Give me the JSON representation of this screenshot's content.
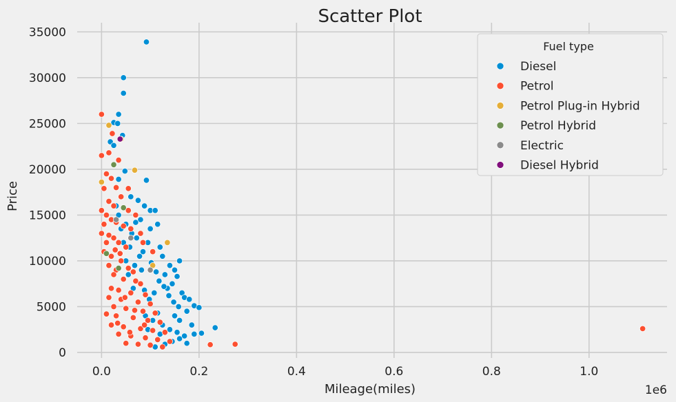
{
  "chart_data": {
    "type": "scatter",
    "title": "Scatter Plot",
    "xlabel": "Mileage(miles)",
    "ylabel": "Price",
    "x_offset_text": "1e6",
    "xlim": [
      -50000,
      1160000
    ],
    "ylim": [
      -600,
      36000
    ],
    "x_ticks": [
      0,
      200000,
      400000,
      600000,
      800000,
      1000000
    ],
    "x_tick_labels": [
      "0.0",
      "0.2",
      "0.4",
      "0.6",
      "0.8",
      "1.0"
    ],
    "y_ticks": [
      0,
      5000,
      10000,
      15000,
      20000,
      25000,
      30000,
      35000
    ],
    "y_tick_labels": [
      "0",
      "5000",
      "10000",
      "15000",
      "20000",
      "25000",
      "30000",
      "35000"
    ],
    "grid": true,
    "legend": {
      "title": "Fuel type",
      "placement": "top-right"
    },
    "series": [
      {
        "name": "Diesel",
        "color": "#008fd5",
        "points": [
          [
            92000,
            33900
          ],
          [
            45000,
            30000
          ],
          [
            45000,
            28300
          ],
          [
            35000,
            26000
          ],
          [
            25000,
            25100
          ],
          [
            33000,
            25000
          ],
          [
            43000,
            23700
          ],
          [
            18000,
            23000
          ],
          [
            25000,
            22600
          ],
          [
            48000,
            19800
          ],
          [
            92000,
            18800
          ],
          [
            35000,
            18900
          ],
          [
            60000,
            17000
          ],
          [
            75000,
            16600
          ],
          [
            88000,
            16000
          ],
          [
            100000,
            15500
          ],
          [
            110000,
            15500
          ],
          [
            115000,
            14000
          ],
          [
            80000,
            14500
          ],
          [
            70000,
            14200
          ],
          [
            100000,
            13500
          ],
          [
            95000,
            12000
          ],
          [
            120000,
            11500
          ],
          [
            85000,
            11000
          ],
          [
            125000,
            10500
          ],
          [
            160000,
            10000
          ],
          [
            140000,
            9500
          ],
          [
            150000,
            9000
          ],
          [
            130000,
            8500
          ],
          [
            155000,
            8300
          ],
          [
            145000,
            7500
          ],
          [
            135000,
            7000
          ],
          [
            165000,
            6500
          ],
          [
            170000,
            6000
          ],
          [
            180000,
            5800
          ],
          [
            190000,
            5100
          ],
          [
            200000,
            4900
          ],
          [
            175000,
            4500
          ],
          [
            150000,
            4000
          ],
          [
            160000,
            3500
          ],
          [
            185000,
            3000
          ],
          [
            190000,
            2000
          ],
          [
            233000,
            2700
          ],
          [
            205000,
            2100
          ],
          [
            170000,
            1800
          ],
          [
            160000,
            1500
          ],
          [
            175000,
            1000
          ],
          [
            145000,
            1200
          ],
          [
            130000,
            900
          ],
          [
            110000,
            600
          ],
          [
            120000,
            2000
          ],
          [
            95000,
            2500
          ],
          [
            90000,
            4000
          ],
          [
            75000,
            5500
          ],
          [
            65000,
            7000
          ],
          [
            55000,
            8500
          ],
          [
            50000,
            10000
          ],
          [
            45000,
            12000
          ],
          [
            40000,
            13500
          ],
          [
            35000,
            15000
          ],
          [
            30000,
            16000
          ],
          [
            28000,
            14500
          ],
          [
            50000,
            14000
          ],
          [
            62000,
            13000
          ],
          [
            72000,
            12500
          ],
          [
            78000,
            10500
          ],
          [
            82000,
            9000
          ],
          [
            102000,
            9800
          ],
          [
            112000,
            8800
          ],
          [
            118000,
            7800
          ],
          [
            128000,
            7200
          ],
          [
            138000,
            6200
          ],
          [
            148000,
            5500
          ],
          [
            158000,
            5000
          ],
          [
            108000,
            6500
          ],
          [
            98000,
            5800
          ],
          [
            88000,
            6800
          ],
          [
            68000,
            9500
          ],
          [
            58000,
            11500
          ],
          [
            105000,
            3500
          ],
          [
            125000,
            3000
          ],
          [
            140000,
            2500
          ],
          [
            155000,
            2200
          ],
          [
            115000,
            4300
          ]
        ]
      },
      {
        "name": "Petrol",
        "color": "#fc4f30",
        "points": [
          [
            0,
            26000
          ],
          [
            22000,
            23900
          ],
          [
            35000,
            21000
          ],
          [
            0,
            21500
          ],
          [
            15000,
            21800
          ],
          [
            0,
            18600
          ],
          [
            10000,
            19500
          ],
          [
            20000,
            19000
          ],
          [
            5000,
            17900
          ],
          [
            30000,
            18000
          ],
          [
            55000,
            17900
          ],
          [
            40000,
            17000
          ],
          [
            0,
            15500
          ],
          [
            15000,
            16500
          ],
          [
            25000,
            16000
          ],
          [
            10000,
            15000
          ],
          [
            20000,
            14500
          ],
          [
            5000,
            14000
          ],
          [
            30000,
            14200
          ],
          [
            45000,
            13800
          ],
          [
            60000,
            13500
          ],
          [
            0,
            13000
          ],
          [
            15000,
            12800
          ],
          [
            25000,
            12500
          ],
          [
            10000,
            12000
          ],
          [
            35000,
            12000
          ],
          [
            50000,
            11500
          ],
          [
            5000,
            11000
          ],
          [
            20000,
            10500
          ],
          [
            40000,
            10000
          ],
          [
            15000,
            9500
          ],
          [
            30000,
            9000
          ],
          [
            55000,
            9200
          ],
          [
            65000,
            8800
          ],
          [
            25000,
            8500
          ],
          [
            45000,
            8000
          ],
          [
            70000,
            7800
          ],
          [
            80000,
            7500
          ],
          [
            20000,
            7000
          ],
          [
            35000,
            6800
          ],
          [
            60000,
            6500
          ],
          [
            90000,
            6300
          ],
          [
            15000,
            6000
          ],
          [
            40000,
            5800
          ],
          [
            75000,
            5500
          ],
          [
            100000,
            5300
          ],
          [
            25000,
            5000
          ],
          [
            50000,
            4800
          ],
          [
            85000,
            4500
          ],
          [
            110000,
            4300
          ],
          [
            10000,
            4200
          ],
          [
            30000,
            4000
          ],
          [
            65000,
            3800
          ],
          [
            95000,
            3500
          ],
          [
            120000,
            3300
          ],
          [
            20000,
            3000
          ],
          [
            45000,
            2800
          ],
          [
            80000,
            2600
          ],
          [
            105000,
            2400
          ],
          [
            130000,
            2200
          ],
          [
            35000,
            2000
          ],
          [
            60000,
            1800
          ],
          [
            90000,
            1600
          ],
          [
            115000,
            1400
          ],
          [
            140000,
            1200
          ],
          [
            50000,
            1000
          ],
          [
            75000,
            900
          ],
          [
            100000,
            800
          ],
          [
            125000,
            600
          ],
          [
            223000,
            850
          ],
          [
            274000,
            900
          ],
          [
            1110000,
            2600
          ],
          [
            105000,
            11000
          ],
          [
            80000,
            13000
          ],
          [
            70000,
            15000
          ],
          [
            85000,
            12000
          ],
          [
            55000,
            15500
          ],
          [
            38000,
            10800
          ],
          [
            28000,
            11200
          ],
          [
            48000,
            6000
          ],
          [
            68000,
            4600
          ],
          [
            88000,
            3000
          ],
          [
            58000,
            2200
          ],
          [
            33000,
            3200
          ]
        ]
      },
      {
        "name": "Petrol Plug-in Hybrid",
        "color": "#e5ae38",
        "points": [
          [
            15000,
            24800
          ],
          [
            68000,
            19900
          ],
          [
            135000,
            12000
          ],
          [
            0,
            18600
          ],
          [
            105000,
            9500
          ],
          [
            40000,
            23300
          ]
        ]
      },
      {
        "name": "Petrol Hybrid",
        "color": "#6d904f",
        "points": [
          [
            25000,
            20500
          ],
          [
            10000,
            10800
          ],
          [
            45000,
            15800
          ],
          [
            35000,
            9200
          ]
        ]
      },
      {
        "name": "Electric",
        "color": "#8b8b8b",
        "points": [
          [
            60000,
            12500
          ],
          [
            100000,
            9000
          ],
          [
            30000,
            14500
          ]
        ]
      },
      {
        "name": "Diesel Hybrid",
        "color": "#810f7c",
        "points": [
          [
            38000,
            23300
          ]
        ]
      }
    ]
  }
}
